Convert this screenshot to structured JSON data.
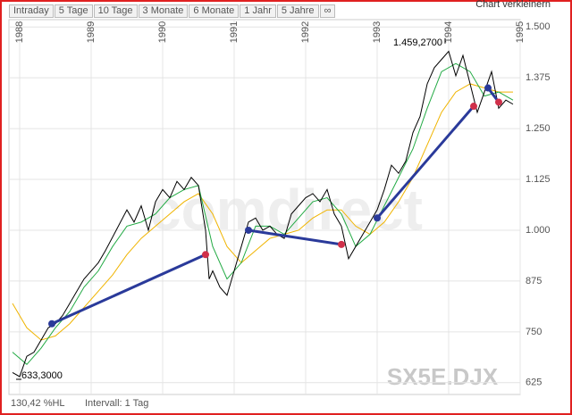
{
  "toolbar": [
    "Intraday",
    "5 Tage",
    "10 Tage",
    "3 Monate",
    "6 Monate",
    "1 Jahr",
    "5 Jahre",
    "∞"
  ],
  "shrink_link": "Chart verkleinern",
  "footer": {
    "range": "130,42 %HL",
    "interval": "Intervall: 1 Tag"
  },
  "chart_data": {
    "type": "line",
    "symbol": "SX5E.DJX",
    "watermark": "comdirect",
    "xlim": [
      1987.85,
      1995.0
    ],
    "xticks": [
      1988,
      1989,
      1990,
      1991,
      1992,
      1993,
      1994,
      1995
    ],
    "ylim": [
      596,
      1518
    ],
    "yticks": [
      625,
      750,
      875,
      {
        "value": 1000,
        "label": "1.000"
      },
      {
        "value": 1125,
        "label": "1.125"
      },
      {
        "value": 1250,
        "label": "1.250"
      },
      {
        "value": 1375,
        "label": "1.375"
      },
      {
        "value": 1500,
        "label": "1.500"
      }
    ],
    "grid": true,
    "series": [
      {
        "color": "#000000",
        "x": [
          1987.9,
          1988.0,
          1988.1,
          1988.2,
          1988.3,
          1988.4,
          1988.5,
          1988.6,
          1988.7,
          1988.8,
          1988.9,
          1989.0,
          1989.1,
          1989.2,
          1989.35,
          1989.5,
          1989.6,
          1989.7,
          1989.8,
          1989.9,
          1990.0,
          1990.1,
          1990.2,
          1990.3,
          1990.4,
          1990.5,
          1990.6,
          1990.65,
          1990.7,
          1990.8,
          1990.9,
          1991.0,
          1991.1,
          1991.2,
          1991.3,
          1991.4,
          1991.5,
          1991.6,
          1991.7,
          1991.8,
          1991.9,
          1992.0,
          1992.1,
          1992.2,
          1992.3,
          1992.4,
          1992.5,
          1992.6,
          1992.7,
          1992.8,
          1992.9,
          1993.0,
          1993.1,
          1993.2,
          1993.3,
          1993.4,
          1993.5,
          1993.6,
          1993.7,
          1993.8,
          1993.9,
          1994.0,
          1994.1,
          1994.2,
          1994.3,
          1994.4,
          1994.5,
          1994.6,
          1994.7,
          1994.8,
          1994.9
        ],
        "values": [
          650,
          640,
          690,
          700,
          730,
          760,
          770,
          790,
          820,
          850,
          880,
          900,
          920,
          950,
          1000,
          1050,
          1020,
          1060,
          1000,
          1070,
          1100,
          1080,
          1120,
          1100,
          1130,
          1110,
          1000,
          880,
          900,
          860,
          840,
          900,
          960,
          1020,
          1030,
          1000,
          1010,
          990,
          980,
          1040,
          1060,
          1080,
          1090,
          1070,
          1100,
          1040,
          1010,
          930,
          960,
          990,
          1020,
          1050,
          1100,
          1160,
          1140,
          1170,
          1240,
          1280,
          1360,
          1400,
          1420,
          1440,
          1380,
          1430,
          1360,
          1290,
          1340,
          1390,
          1300,
          1320,
          1310
        ]
      },
      {
        "color": "#22aa44",
        "x": [
          1987.9,
          1988.1,
          1988.3,
          1988.5,
          1988.7,
          1988.9,
          1989.1,
          1989.3,
          1989.5,
          1989.7,
          1989.9,
          1990.1,
          1990.3,
          1990.5,
          1990.7,
          1990.9,
          1991.1,
          1991.3,
          1991.5,
          1991.7,
          1991.9,
          1992.1,
          1992.3,
          1992.5,
          1992.7,
          1992.9,
          1993.1,
          1993.3,
          1993.5,
          1993.7,
          1993.9,
          1994.1,
          1994.3,
          1994.5,
          1994.7,
          1994.9
        ],
        "values": [
          700,
          670,
          710,
          760,
          800,
          860,
          900,
          960,
          1010,
          1020,
          1040,
          1080,
          1100,
          1110,
          960,
          880,
          920,
          1010,
          1010,
          990,
          1030,
          1070,
          1080,
          1040,
          960,
          990,
          1060,
          1130,
          1200,
          1300,
          1390,
          1410,
          1390,
          1330,
          1340,
          1320
        ]
      },
      {
        "color": "#f0b400",
        "x": [
          1987.9,
          1988.1,
          1988.3,
          1988.5,
          1988.7,
          1988.9,
          1989.1,
          1989.3,
          1989.5,
          1989.7,
          1989.9,
          1990.1,
          1990.3,
          1990.5,
          1990.7,
          1990.9,
          1991.1,
          1991.3,
          1991.5,
          1991.7,
          1991.9,
          1992.1,
          1992.3,
          1992.5,
          1992.7,
          1992.9,
          1993.1,
          1993.3,
          1993.5,
          1993.7,
          1993.9,
          1994.1,
          1994.3,
          1994.5,
          1994.7,
          1994.9
        ],
        "values": [
          820,
          760,
          730,
          740,
          770,
          810,
          850,
          890,
          940,
          980,
          1010,
          1040,
          1070,
          1090,
          1040,
          960,
          920,
          950,
          980,
          990,
          1000,
          1030,
          1050,
          1050,
          1010,
          990,
          1020,
          1070,
          1130,
          1210,
          1290,
          1340,
          1360,
          1350,
          1340,
          1340
        ]
      }
    ],
    "trend_color": "#2a3a9a",
    "start_color": "#2a3a9a",
    "end_color": "#d0304a",
    "trend_lines": [
      {
        "x": [
          1988.45,
          1990.6
        ],
        "values": [
          770,
          940
        ]
      },
      {
        "x": [
          1991.2,
          1992.5
        ],
        "values": [
          1000,
          965
        ]
      },
      {
        "x": [
          1993.0,
          1994.35
        ],
        "values": [
          1030,
          1305
        ]
      },
      {
        "x": [
          1994.55,
          1994.7
        ],
        "values": [
          1350,
          1315
        ]
      }
    ],
    "annotations": [
      {
        "label": "1.459,2700",
        "x": 1993.95,
        "value": 1459.27
      },
      {
        "label": "633,3000",
        "x": 1987.95,
        "value": 633.3
      }
    ]
  }
}
